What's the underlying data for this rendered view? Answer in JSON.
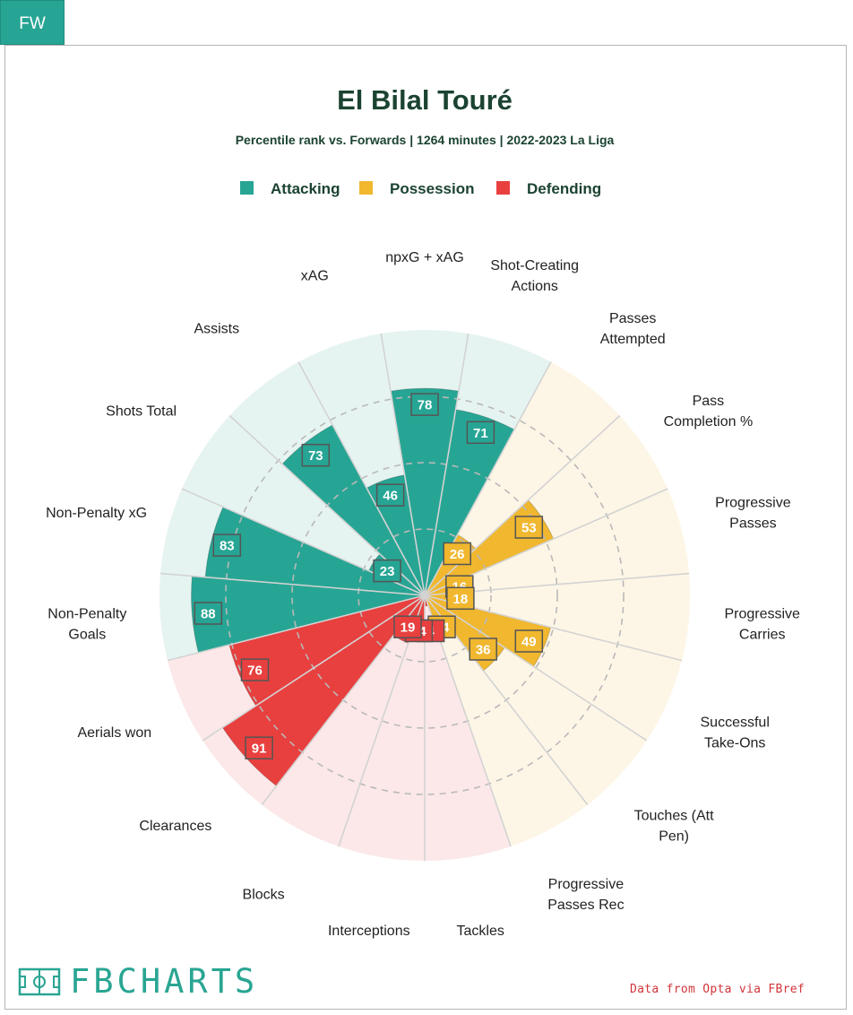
{
  "tab": {
    "label": "FW"
  },
  "chart_data": {
    "type": "polar-bar",
    "title": "El Bilal Touré",
    "subtitle": "Percentile rank vs. Forwards | 1264 minutes | 2022-2023 La Liga",
    "rmax": 100,
    "legend": [
      {
        "name": "Attacking",
        "color": "#27a594"
      },
      {
        "name": "Possession",
        "color": "#f0b72f"
      },
      {
        "name": "Defending",
        "color": "#e8403f"
      }
    ],
    "categories": [
      {
        "label": "npxG + xAG",
        "lines": [
          "npxG + xAG"
        ],
        "value": 78,
        "group": "Attacking"
      },
      {
        "label": "Shot-Creating Actions",
        "lines": [
          "Shot-Creating",
          "Actions"
        ],
        "value": 71,
        "group": "Attacking"
      },
      {
        "label": "Passes Attempted",
        "lines": [
          "Passes",
          "Attempted"
        ],
        "value": 26,
        "group": "Possession"
      },
      {
        "label": "Pass Completion %",
        "lines": [
          "Pass",
          "Completion %"
        ],
        "value": 53,
        "group": "Possession"
      },
      {
        "label": "Progressive Passes",
        "lines": [
          "Progressive",
          "Passes"
        ],
        "value": 16,
        "group": "Possession"
      },
      {
        "label": "Progressive Carries",
        "lines": [
          "Progressive",
          "Carries"
        ],
        "value": 18,
        "group": "Possession"
      },
      {
        "label": "Successful Take-Ons",
        "lines": [
          "Successful",
          "Take-Ons"
        ],
        "value": 49,
        "group": "Possession"
      },
      {
        "label": "Touches (Att Pen)",
        "lines": [
          "Touches (Att",
          "Pen)"
        ],
        "value": 36,
        "group": "Possession"
      },
      {
        "label": "Progressive Passes Rec",
        "lines": [
          "Progressive",
          "Passes Rec"
        ],
        "value": 14,
        "group": "Possession"
      },
      {
        "label": "Tackles",
        "lines": [
          "Tackles"
        ],
        "value": 4,
        "group": "Defending"
      },
      {
        "label": "Interceptions",
        "lines": [
          "Interceptions"
        ],
        "value": 14,
        "group": "Defending"
      },
      {
        "label": "Blocks",
        "lines": [
          "Blocks"
        ],
        "value": 19,
        "group": "Defending"
      },
      {
        "label": "Clearances",
        "lines": [
          "Clearances"
        ],
        "value": 91,
        "group": "Defending"
      },
      {
        "label": "Aerials won",
        "lines": [
          "Aerials won"
        ],
        "value": 76,
        "group": "Defending"
      },
      {
        "label": "Non-Penalty Goals",
        "lines": [
          "Non-Penalty",
          "Goals"
        ],
        "value": 88,
        "group": "Attacking"
      },
      {
        "label": "Non-Penalty xG",
        "lines": [
          "Non-Penalty xG"
        ],
        "value": 83,
        "group": "Attacking"
      },
      {
        "label": "Shots Total",
        "lines": [
          "Shots Total"
        ],
        "value": 23,
        "group": "Attacking"
      },
      {
        "label": "Assists",
        "lines": [
          "Assists"
        ],
        "value": 73,
        "group": "Attacking"
      },
      {
        "label": "xAG",
        "lines": [
          "xAG"
        ],
        "value": 46,
        "group": "Attacking"
      }
    ],
    "group_backgrounds": {
      "Attacking": "#e6f4f1",
      "Possession": "#fdf6e6",
      "Defending": "#fce8e8"
    }
  },
  "footer": {
    "logo_text": "FBCHARTS",
    "credit": "Data from Opta via FBref"
  }
}
